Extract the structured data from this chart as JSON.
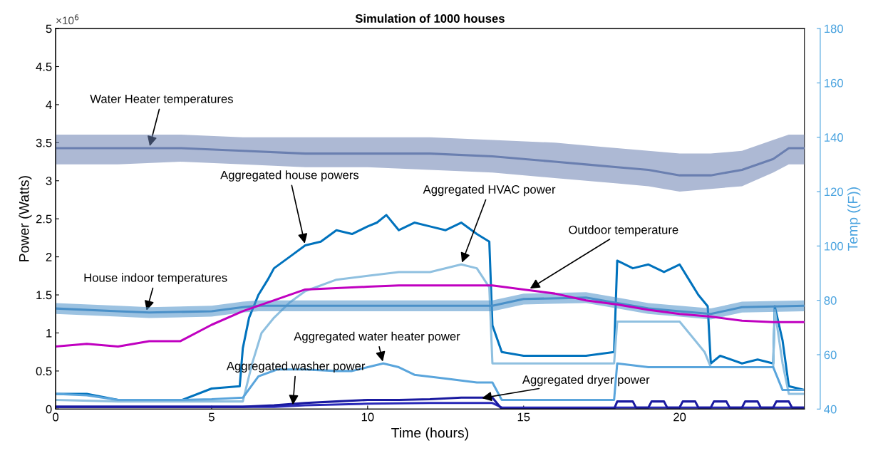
{
  "chart_data": {
    "type": "line",
    "title": "Simulation of 1000 houses",
    "xlabel": "Time (hours)",
    "ylabel": "Power (Watts)",
    "y2label": "Temp ((F))",
    "xlim": [
      0,
      24
    ],
    "xticks": [
      0,
      5,
      10,
      15,
      20
    ],
    "ylim": [
      0,
      5
    ],
    "yticks": [
      0,
      0.5,
      1,
      1.5,
      2,
      2.5,
      3,
      3.5,
      4,
      4.5,
      5
    ],
    "y2lim": [
      40,
      180
    ],
    "y2ticks": [
      40,
      60,
      80,
      100,
      120,
      140,
      160,
      180
    ],
    "grid": false,
    "series": [
      {
        "color": "#6a7fb0",
        "axis": "y2",
        "x": [
          0,
          2,
          4,
          6,
          8,
          10,
          12,
          14,
          16,
          17,
          18,
          19,
          20,
          21,
          22,
          23,
          23.5,
          24
        ],
        "values": [
          136,
          136,
          136,
          135,
          134,
          134,
          134,
          133,
          131,
          130,
          129,
          128,
          126,
          126,
          128,
          132,
          136,
          136
        ],
        "lower": [
          130,
          130,
          131,
          130,
          129,
          129,
          128,
          127,
          125,
          124,
          123,
          122,
          120,
          121,
          122,
          127,
          130,
          130
        ],
        "upper": [
          141,
          141,
          141,
          140,
          140,
          140,
          140,
          139,
          138,
          137,
          136,
          135,
          134,
          134,
          135,
          139,
          141,
          141
        ]
      },
      {
        "color": "#4a90c8",
        "axis": "y2",
        "x": [
          0,
          2,
          3,
          5,
          6,
          6.5,
          10,
          14,
          15,
          17,
          18,
          19,
          20,
          21,
          22,
          24
        ],
        "values": [
          77,
          76,
          75.5,
          76,
          77.5,
          78,
          78,
          78,
          80.5,
          81,
          79,
          77,
          76,
          75,
          77.5,
          78
        ],
        "lower": [
          75,
          74,
          73.5,
          74,
          75.5,
          76,
          76,
          76,
          78.5,
          79,
          77,
          75,
          74,
          73,
          75.5,
          76
        ],
        "upper": [
          79,
          78,
          77.5,
          78,
          79.5,
          80,
          80,
          80,
          82.5,
          83,
          81,
          79,
          78,
          77,
          79.5,
          80
        ]
      },
      {
        "color": "#c000c0",
        "axis": "y2",
        "x": [
          0,
          1,
          2,
          3,
          4,
          5,
          6,
          7,
          8,
          9,
          10,
          11,
          13,
          14,
          15,
          16,
          17,
          18,
          19,
          20,
          21,
          22,
          23,
          24
        ],
        "values": [
          63,
          64,
          63,
          65,
          65,
          71,
          76,
          80,
          84,
          84.5,
          85,
          85.5,
          85.5,
          85.5,
          84,
          82.5,
          80,
          78.5,
          76.5,
          75,
          74,
          72.5,
          72,
          72
        ]
      },
      {
        "color": "#0072bd",
        "x": [
          0,
          1,
          2,
          3,
          4,
          5,
          5.9,
          6.0,
          6.2,
          6.5,
          6.8,
          7,
          7.5,
          8,
          8.5,
          9,
          9.5,
          10,
          10.3,
          10.6,
          11,
          11.5,
          12,
          12.5,
          13,
          13.5,
          13.9,
          14.0,
          14.3,
          15,
          16,
          17,
          17.9,
          18.0,
          18.5,
          19,
          19.5,
          20,
          20.3,
          20.6,
          20.9,
          21.0,
          21.3,
          22,
          22.5,
          23.0,
          23.05,
          23.3,
          23.5,
          24
        ],
        "values": [
          0.2,
          0.2,
          0.12,
          0.12,
          0.11,
          0.27,
          0.3,
          0.8,
          1.2,
          1.5,
          1.7,
          1.85,
          2.0,
          2.15,
          2.2,
          2.35,
          2.3,
          2.4,
          2.45,
          2.55,
          2.35,
          2.45,
          2.4,
          2.35,
          2.45,
          2.3,
          2.2,
          1.1,
          0.75,
          0.7,
          0.7,
          0.7,
          0.75,
          1.95,
          1.85,
          1.9,
          1.8,
          1.9,
          1.7,
          1.5,
          1.35,
          0.6,
          0.7,
          0.6,
          0.65,
          0.6,
          1.35,
          0.9,
          0.3,
          0.25
        ]
      },
      {
        "color": "#8fc0e0",
        "x": [
          0,
          2,
          4,
          5,
          6.0,
          6.3,
          6.6,
          7,
          7.5,
          8,
          9,
          10,
          11,
          12,
          13,
          13.5,
          13.9,
          14.0,
          15,
          16,
          17,
          17.9,
          18.0,
          19,
          20,
          20.4,
          20.8,
          21.0,
          22,
          23.0,
          23.05,
          23.3,
          23.5,
          24
        ],
        "values": [
          0.12,
          0.1,
          0.1,
          0.1,
          0.1,
          0.6,
          1.0,
          1.2,
          1.4,
          1.55,
          1.7,
          1.75,
          1.8,
          1.8,
          1.9,
          1.85,
          1.6,
          0.6,
          0.6,
          0.6,
          0.6,
          0.6,
          1.15,
          1.15,
          1.15,
          0.95,
          0.75,
          0.55,
          0.55,
          0.55,
          1.3,
          0.6,
          0.2,
          0.2
        ]
      },
      {
        "color": "#5aa5dc",
        "x": [
          0,
          1,
          2,
          4,
          5,
          6,
          6.5,
          7.1,
          8,
          9,
          9.5,
          10,
          10.5,
          11,
          11.5,
          12.5,
          13.5,
          14.0,
          14.3,
          15,
          17,
          17.9,
          18.0,
          19,
          20,
          21,
          22,
          23.0,
          23.3,
          24
        ],
        "values": [
          0.2,
          0.18,
          0.12,
          0.12,
          0.13,
          0.15,
          0.43,
          0.52,
          0.52,
          0.5,
          0.5,
          0.55,
          0.6,
          0.55,
          0.45,
          0.4,
          0.35,
          0.35,
          0.12,
          0.12,
          0.12,
          0.12,
          0.6,
          0.55,
          0.55,
          0.55,
          0.55,
          0.55,
          0.25,
          0.25
        ]
      },
      {
        "color": "#2a2ab8",
        "x": [
          0,
          4,
          7,
          8,
          10,
          12,
          14,
          14.3,
          18,
          20,
          24
        ],
        "values": [
          0.03,
          0.03,
          0.03,
          0.05,
          0.07,
          0.08,
          0.08,
          0.02,
          0.02,
          0.02,
          0.02
        ]
      },
      {
        "color": "#1a1aa0",
        "x": [
          0,
          6,
          7,
          8,
          9,
          10,
          11,
          12,
          13,
          14,
          14.3,
          17.9,
          18.0,
          18.5,
          18.6,
          19.0,
          19.1,
          19.5,
          19.6,
          20,
          20.1,
          20.5,
          20.6,
          21,
          21.1,
          21.5,
          21.6,
          22,
          22.1,
          22.5,
          22.6,
          23,
          23.1,
          23.5,
          23.6,
          24
        ],
        "values": [
          0.03,
          0.03,
          0.05,
          0.08,
          0.1,
          0.12,
          0.12,
          0.13,
          0.15,
          0.15,
          0,
          0,
          0.1,
          0.1,
          0.02,
          0.02,
          0.1,
          0.1,
          0.02,
          0.02,
          0.1,
          0.1,
          0.02,
          0.02,
          0.1,
          0.1,
          0.02,
          0.02,
          0.1,
          0.1,
          0.02,
          0.02,
          0.1,
          0.1,
          0.02,
          0.02
        ]
      }
    ],
    "annotations": [
      "×10$^{6}$",
      {
        "text": "Water Heater temperatures",
        "x": 3.0,
        "y": 3.43
      },
      {
        "text": "Aggregated house powers",
        "x": 8.0,
        "y": 2.15
      },
      {
        "text": "Aggregated HVAC power",
        "x": 13.0,
        "y": 1.9
      },
      {
        "text": "Outdoor temperature",
        "x": 15.15,
        "y": 1.57
      },
      {
        "text": "House indoor temperatures",
        "x": 2.9,
        "y": 1.27
      },
      {
        "text": "Aggregated water heater power",
        "x": 10.5,
        "y": 0.6
      },
      {
        "text": "Aggregated washer power",
        "x": 7.6,
        "y": 0.03
      },
      {
        "text": "Aggregated dryer power",
        "x": 13.6,
        "y": 0.14
      }
    ]
  }
}
